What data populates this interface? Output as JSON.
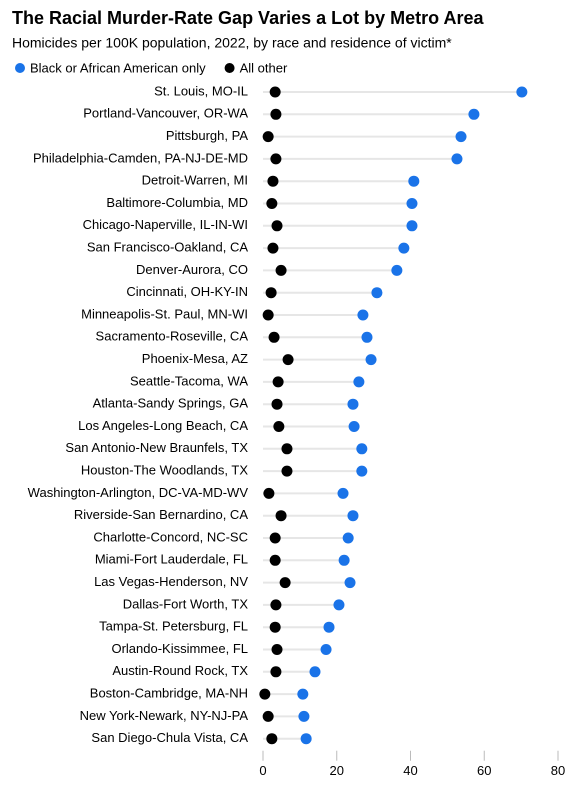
{
  "chart_data": {
    "type": "dot",
    "title": "The Racial Murder-Rate Gap Varies a Lot by Metro Area",
    "subtitle": "Homicides per 100K population, 2022, by race and residence of victim*",
    "categories": [
      "St. Louis, MO-IL",
      "Portland-Vancouver, OR-WA",
      "Pittsburgh, PA",
      "Philadelphia-Camden, PA-NJ-DE-MD",
      "Detroit-Warren, MI",
      "Baltimore-Columbia, MD",
      "Chicago-Naperville, IL-IN-WI",
      "San Francisco-Oakland, CA",
      "Denver-Aurora, CO",
      "Cincinnati, OH-KY-IN",
      "Minneapolis-St. Paul, MN-WI",
      "Sacramento-Roseville, CA",
      "Phoenix-Mesa, AZ",
      "Seattle-Tacoma, WA",
      "Atlanta-Sandy Springs, GA",
      "Los Angeles-Long Beach, CA",
      "San Antonio-New Braunfels, TX",
      "Houston-The Woodlands, TX",
      "Washington-Arlington, DC-VA-MD-WV",
      "Riverside-San Bernardino, CA",
      "Charlotte-Concord, NC-SC",
      "Miami-Fort Lauderdale, FL",
      "Las Vegas-Henderson, NV",
      "Dallas-Fort Worth, TX",
      "Tampa-St. Petersburg, FL",
      "Orlando-Kissimmee, FL",
      "Austin-Round Rock, TX",
      "Boston-Cambridge, MA-NH",
      "New York-Newark, NY-NJ-PA",
      "San Diego-Chula Vista, CA"
    ],
    "series": [
      {
        "name": "Black or African American only",
        "color": "#1a73e8",
        "values": [
          70.2,
          57.2,
          53.7,
          52.6,
          40.9,
          40.4,
          40.4,
          38.2,
          36.3,
          30.9,
          27.1,
          28.2,
          29.3,
          26.0,
          24.4,
          24.7,
          26.8,
          26.8,
          21.7,
          24.4,
          23.1,
          22.0,
          23.6,
          20.6,
          17.9,
          17.1,
          14.1,
          10.8,
          11.1,
          11.7
        ]
      },
      {
        "name": "All other",
        "color": "#000000",
        "values": [
          3.3,
          3.5,
          1.4,
          3.5,
          2.7,
          2.4,
          3.8,
          2.7,
          4.9,
          2.2,
          1.4,
          3.0,
          6.8,
          4.1,
          3.8,
          4.3,
          6.5,
          6.5,
          1.6,
          4.9,
          3.3,
          3.3,
          6.0,
          3.5,
          3.3,
          3.8,
          3.5,
          0.5,
          1.4,
          2.4
        ]
      }
    ],
    "xlim": [
      0,
      80
    ],
    "xticks": [
      0,
      20,
      40,
      60,
      80
    ]
  }
}
